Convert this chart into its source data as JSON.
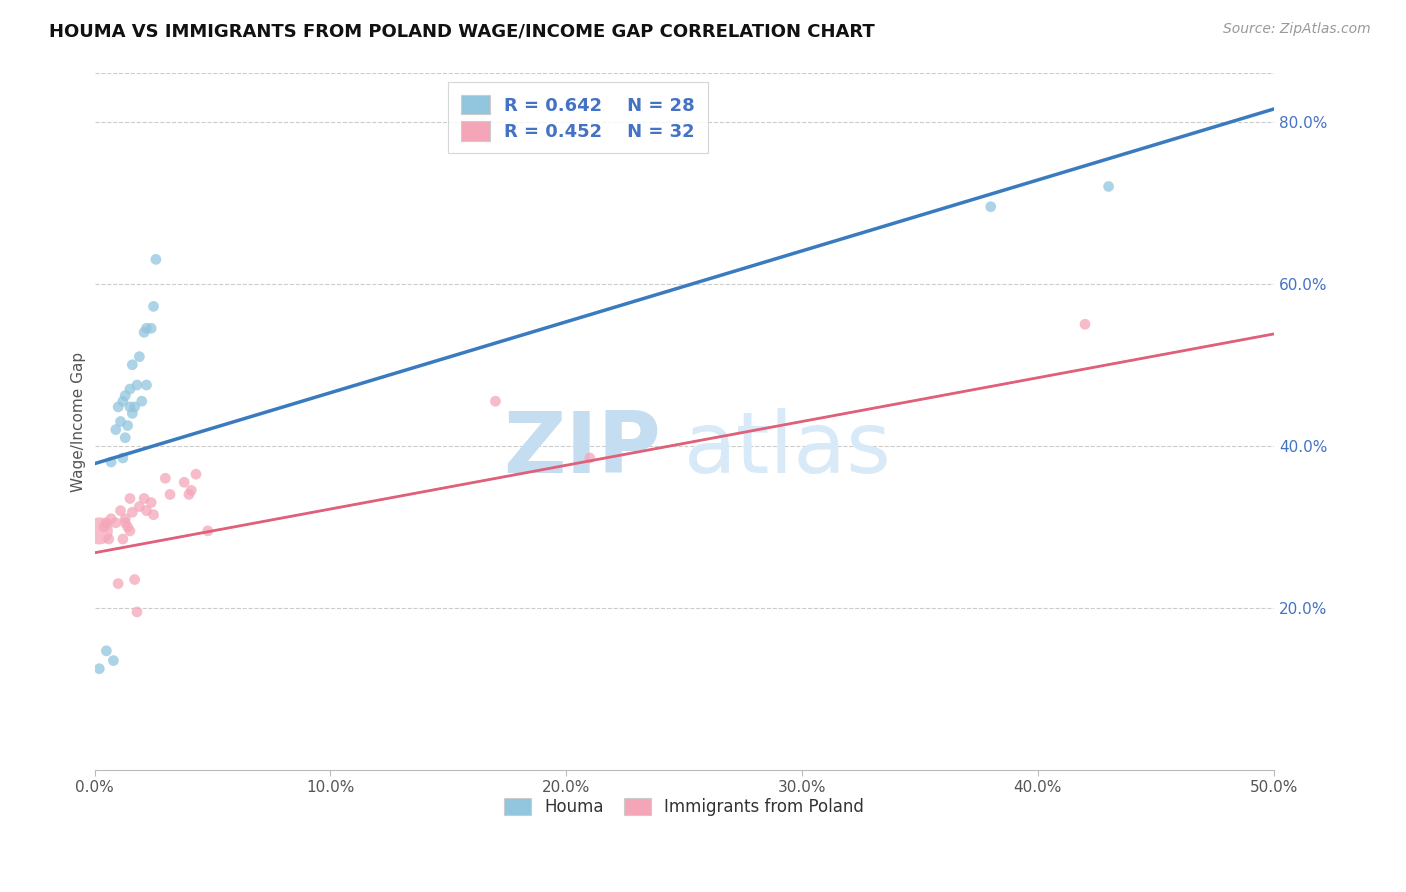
{
  "title": "HOUMA VS IMMIGRANTS FROM POLAND WAGE/INCOME GAP CORRELATION CHART",
  "source": "Source: ZipAtlas.com",
  "ylabel": "Wage/Income Gap",
  "x_min": 0.0,
  "x_max": 0.5,
  "y_min": 0.0,
  "y_max": 0.86,
  "x_ticks": [
    0.0,
    0.1,
    0.2,
    0.3,
    0.4,
    0.5
  ],
  "x_tick_labels": [
    "0.0%",
    "10.0%",
    "20.0%",
    "30.0%",
    "40.0%",
    "50.0%"
  ],
  "y_ticks": [
    0.2,
    0.4,
    0.6,
    0.8
  ],
  "y_tick_labels": [
    "20.0%",
    "40.0%",
    "60.0%",
    "80.0%"
  ],
  "houma_R": "0.642",
  "houma_N": "28",
  "poland_R": "0.452",
  "poland_N": "32",
  "legend_label_houma": "Houma",
  "legend_label_poland": "Immigrants from Poland",
  "blue_color": "#92c5de",
  "blue_line_color": "#3a7bbf",
  "pink_color": "#f4a6b8",
  "pink_line_color": "#e0607a",
  "dashed_line_color": "#c8a0a8",
  "legend_text_color": "#4472c4",
  "watermark_zip": "ZIP",
  "watermark_atlas": "atlas",
  "watermark_color": "#cce0f0",
  "blue_line_intercept": 0.378,
  "blue_line_slope": 0.875,
  "pink_line_intercept": 0.268,
  "pink_line_slope": 0.54,
  "dashed_line_intercept": 0.268,
  "dashed_line_slope": 0.54,
  "houma_x": [
    0.002,
    0.005,
    0.007,
    0.008,
    0.009,
    0.01,
    0.011,
    0.012,
    0.012,
    0.013,
    0.013,
    0.014,
    0.015,
    0.015,
    0.016,
    0.016,
    0.017,
    0.018,
    0.019,
    0.02,
    0.021,
    0.022,
    0.022,
    0.024,
    0.025,
    0.026,
    0.38,
    0.43
  ],
  "houma_y": [
    0.125,
    0.147,
    0.38,
    0.135,
    0.42,
    0.448,
    0.43,
    0.385,
    0.455,
    0.41,
    0.462,
    0.425,
    0.47,
    0.448,
    0.44,
    0.5,
    0.448,
    0.475,
    0.51,
    0.455,
    0.54,
    0.545,
    0.475,
    0.545,
    0.572,
    0.63,
    0.695,
    0.72
  ],
  "poland_x": [
    0.002,
    0.004,
    0.005,
    0.006,
    0.007,
    0.009,
    0.01,
    0.011,
    0.012,
    0.013,
    0.013,
    0.014,
    0.015,
    0.015,
    0.016,
    0.017,
    0.018,
    0.019,
    0.021,
    0.022,
    0.024,
    0.025,
    0.03,
    0.032,
    0.038,
    0.04,
    0.041,
    0.043,
    0.048,
    0.17,
    0.21,
    0.42
  ],
  "poland_y": [
    0.295,
    0.3,
    0.305,
    0.285,
    0.31,
    0.305,
    0.23,
    0.32,
    0.285,
    0.31,
    0.305,
    0.3,
    0.295,
    0.335,
    0.318,
    0.235,
    0.195,
    0.325,
    0.335,
    0.32,
    0.33,
    0.315,
    0.36,
    0.34,
    0.355,
    0.34,
    0.345,
    0.365,
    0.295,
    0.455,
    0.385,
    0.55
  ],
  "houma_sizes": [
    60,
    60,
    60,
    60,
    60,
    60,
    60,
    60,
    60,
    60,
    60,
    60,
    60,
    60,
    60,
    60,
    60,
    60,
    60,
    60,
    60,
    60,
    60,
    60,
    60,
    60,
    60,
    60
  ],
  "poland_sizes": [
    380,
    60,
    60,
    60,
    60,
    60,
    60,
    60,
    60,
    60,
    60,
    60,
    60,
    60,
    60,
    60,
    60,
    60,
    60,
    60,
    60,
    60,
    60,
    60,
    60,
    60,
    60,
    60,
    60,
    60,
    60,
    60
  ]
}
